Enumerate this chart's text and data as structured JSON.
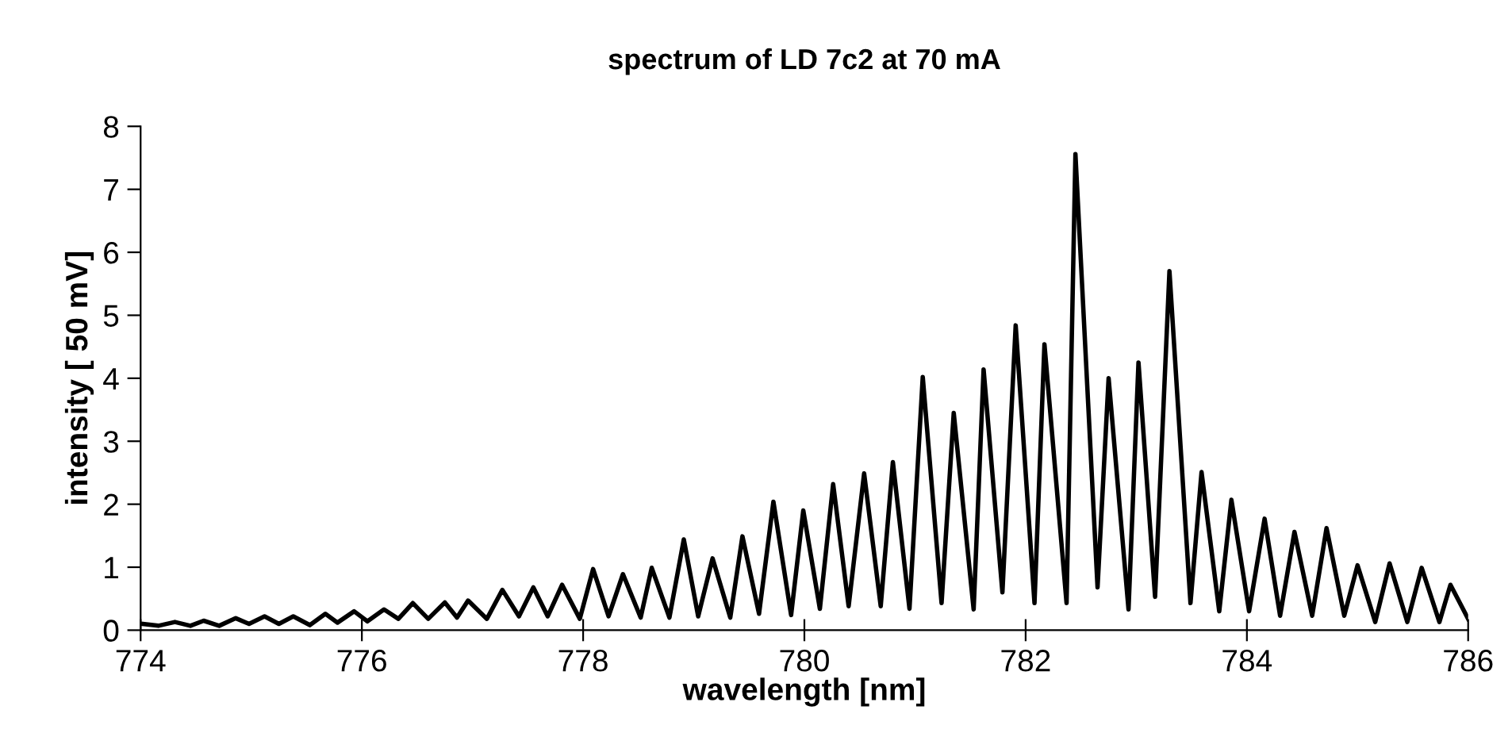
{
  "chart_data": {
    "type": "line",
    "title": "spectrum of LD 7c2 at 70 mA",
    "xlabel": "wavelength [nm]",
    "ylabel": "intensity [ 50 mV]",
    "xlim": [
      774,
      786
    ],
    "xticks": [
      774,
      776,
      778,
      780,
      782,
      784,
      786
    ],
    "ylim": [
      0,
      8
    ],
    "yticks": [
      0,
      1,
      2,
      3,
      4,
      5,
      6,
      7,
      8
    ],
    "grid": false,
    "legend": false,
    "marker": "none",
    "line_style": "solid",
    "series": [
      {
        "color": "#000000",
        "x": [
          774.02,
          774.16,
          774.31,
          774.45,
          774.57,
          774.71,
          774.86,
          774.98,
          775.12,
          775.25,
          775.38,
          775.53,
          775.67,
          775.78,
          775.93,
          776.05,
          776.2,
          776.33,
          776.46,
          776.6,
          776.75,
          776.86,
          776.96,
          777.13,
          777.27,
          777.42,
          777.55,
          777.68,
          777.81,
          777.97,
          778.09,
          778.23,
          778.36,
          778.52,
          778.62,
          778.78,
          778.91,
          779.04,
          779.17,
          779.33,
          779.44,
          779.59,
          779.72,
          779.88,
          779.99,
          780.14,
          780.26,
          780.4,
          780.54,
          780.69,
          780.8,
          780.95,
          781.07,
          781.24,
          781.35,
          781.53,
          781.62,
          781.79,
          781.91,
          782.08,
          782.17,
          782.37,
          782.45,
          782.65,
          782.75,
          782.93,
          783.02,
          783.17,
          783.3,
          783.49,
          783.59,
          783.75,
          783.86,
          784.02,
          784.16,
          784.3,
          784.43,
          784.59,
          784.72,
          784.88,
          785.0,
          785.16,
          785.29,
          785.45,
          785.58,
          785.74,
          785.84,
          786.0
        ],
        "values": [
          0.1,
          0.07,
          0.13,
          0.07,
          0.15,
          0.07,
          0.19,
          0.1,
          0.22,
          0.1,
          0.22,
          0.08,
          0.26,
          0.12,
          0.3,
          0.14,
          0.33,
          0.18,
          0.43,
          0.18,
          0.44,
          0.2,
          0.47,
          0.18,
          0.64,
          0.22,
          0.68,
          0.22,
          0.72,
          0.18,
          0.97,
          0.22,
          0.89,
          0.2,
          0.99,
          0.2,
          1.44,
          0.22,
          1.14,
          0.2,
          1.49,
          0.26,
          2.04,
          0.24,
          1.9,
          0.34,
          2.32,
          0.38,
          2.49,
          0.38,
          2.67,
          0.34,
          4.02,
          0.43,
          3.45,
          0.33,
          4.14,
          0.6,
          4.84,
          0.43,
          4.54,
          0.43,
          7.56,
          0.68,
          4.0,
          0.33,
          4.25,
          0.53,
          5.7,
          0.43,
          2.51,
          0.3,
          2.07,
          0.3,
          1.77,
          0.23,
          1.56,
          0.23,
          1.62,
          0.23,
          1.03,
          0.13,
          1.06,
          0.13,
          0.99,
          0.13,
          0.72,
          0.18
        ]
      }
    ]
  }
}
